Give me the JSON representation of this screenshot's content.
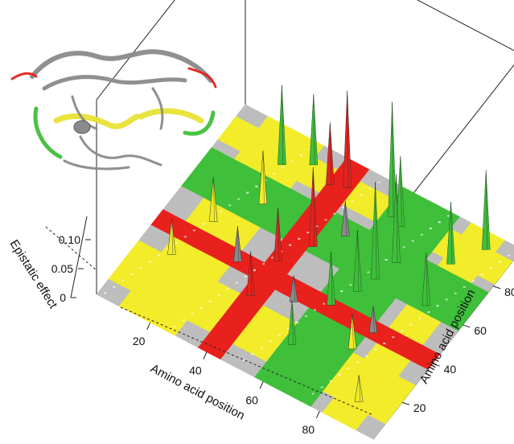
{
  "chart_data": {
    "type": "surface3d",
    "title": "",
    "xlabel": "Amino acid position",
    "ylabel": "Amino acid position",
    "zlabel": "Epistatic effect",
    "xlim": [
      1,
      99
    ],
    "ylim": [
      1,
      99
    ],
    "zlim": [
      0,
      0.14
    ],
    "x_ticks": [
      "20",
      "40",
      "60",
      "80"
    ],
    "y_ticks": [
      "20",
      "40",
      "60",
      "80"
    ],
    "z_ticks": [
      "0",
      "0.05",
      "0.10"
    ],
    "region_colors": {
      "red": "#e8211c",
      "yellow": "#f2ec2a",
      "green": "#3fbf3a",
      "gray": "#bdbdbd",
      "peak_dark": "#1f5a1f"
    },
    "red_band": [
      36,
      44
    ],
    "green_bands": [
      [
        56,
        76
      ]
    ],
    "yellow_bands": [
      [
        10,
        30
      ],
      [
        80,
        92
      ]
    ],
    "peaks": [
      {
        "x": 22,
        "y": 84,
        "z": 0.09,
        "color": "green"
      },
      {
        "x": 30,
        "y": 90,
        "z": 0.08,
        "color": "green"
      },
      {
        "x": 38,
        "y": 86,
        "z": 0.07,
        "color": "red"
      },
      {
        "x": 43,
        "y": 88,
        "z": 0.11,
        "color": "red"
      },
      {
        "x": 46,
        "y": 60,
        "z": 0.09,
        "color": "red"
      },
      {
        "x": 40,
        "y": 48,
        "z": 0.06,
        "color": "red"
      },
      {
        "x": 40,
        "y": 30,
        "z": 0.05,
        "color": "red"
      },
      {
        "x": 25,
        "y": 66,
        "z": 0.06,
        "color": "yellow"
      },
      {
        "x": 16,
        "y": 50,
        "z": 0.05,
        "color": "yellow"
      },
      {
        "x": 12,
        "y": 30,
        "z": 0.04,
        "color": "yellow"
      },
      {
        "x": 60,
        "y": 86,
        "z": 0.13,
        "color": "green"
      },
      {
        "x": 64,
        "y": 84,
        "z": 0.08,
        "color": "green"
      },
      {
        "x": 70,
        "y": 70,
        "z": 0.1,
        "color": "green"
      },
      {
        "x": 68,
        "y": 60,
        "z": 0.11,
        "color": "green"
      },
      {
        "x": 66,
        "y": 52,
        "z": 0.07,
        "color": "green"
      },
      {
        "x": 62,
        "y": 42,
        "z": 0.06,
        "color": "green"
      },
      {
        "x": 60,
        "y": 20,
        "z": 0.05,
        "color": "green"
      },
      {
        "x": 84,
        "y": 80,
        "z": 0.07,
        "color": "green"
      },
      {
        "x": 86,
        "y": 60,
        "z": 0.06,
        "color": "green"
      },
      {
        "x": 90,
        "y": 92,
        "z": 0.09,
        "color": "green"
      },
      {
        "x": 52,
        "y": 70,
        "z": 0.04,
        "color": "gray"
      },
      {
        "x": 52,
        "y": 36,
        "z": 0.03,
        "color": "gray"
      },
      {
        "x": 78,
        "y": 40,
        "z": 0.03,
        "color": "gray"
      },
      {
        "x": 30,
        "y": 40,
        "z": 0.04,
        "color": "gray"
      },
      {
        "x": 88,
        "y": 12,
        "z": 0.03,
        "color": "yellow"
      },
      {
        "x": 76,
        "y": 30,
        "z": 0.04,
        "color": "yellow"
      }
    ]
  },
  "inset": {
    "subject": "protein dimer ribbon structure",
    "colors": [
      "#8a8a8a",
      "#e8e233",
      "#3fbf3a",
      "#e8211c"
    ]
  }
}
